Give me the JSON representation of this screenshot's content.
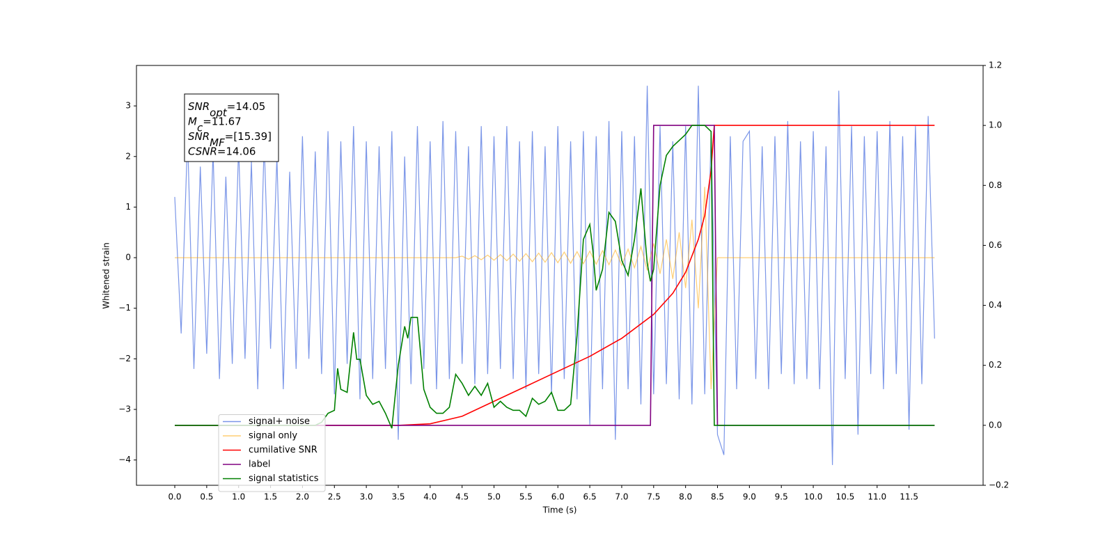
{
  "chart_data": {
    "type": "line",
    "xlabel": "Time (s)",
    "ylabel": "Whitened strain",
    "annotations": [
      {
        "main": "SNR",
        "sub": "opt",
        "text": "=14.05"
      },
      {
        "main": "M",
        "sub": "c",
        "text": "=11.67"
      },
      {
        "main": "SNR",
        "sub": "MF",
        "text": "=[15.39]"
      },
      {
        "main": "CSNR",
        "text": "=14.06"
      }
    ],
    "xlim": [
      -0.6,
      12.66
    ],
    "ylim": [
      -4.5,
      3.8
    ],
    "y2lim": [
      -0.2,
      1.2
    ],
    "xticks": [
      {
        "value": 0,
        "label": "0.0"
      },
      0.5,
      {
        "value": 1,
        "label": "1.0"
      },
      1.5,
      {
        "value": 2,
        "label": "2.0"
      },
      2.5,
      {
        "value": 3,
        "label": "3.0"
      },
      3.5,
      {
        "value": 4,
        "label": "4.0"
      },
      4.5,
      {
        "value": 5,
        "label": "5.0"
      },
      5.5,
      {
        "value": 6,
        "label": "6.0"
      },
      6.5,
      {
        "value": 7,
        "label": "7.0"
      },
      7.5,
      {
        "value": 8,
        "label": "8.0"
      },
      8.5,
      {
        "value": 9,
        "label": "9.0"
      },
      9.5,
      {
        "value": 10,
        "label": "10.0"
      },
      10.5,
      {
        "value": 11,
        "label": "11.0"
      },
      11.5
    ],
    "yticks": [
      {
        "value": -4,
        "label": "−4"
      },
      {
        "value": -3,
        "label": "−3"
      },
      {
        "value": -2,
        "label": "−2"
      },
      {
        "value": -1,
        "label": "−1"
      },
      0,
      1,
      2,
      3
    ],
    "y2ticks": [
      {
        "value": -0.2,
        "label": "−0.2"
      },
      {
        "value": 0,
        "label": "0.0"
      },
      0.2,
      0.4,
      0.6,
      0.8,
      {
        "value": 1,
        "label": "1.0"
      },
      1.2
    ],
    "legend": "lower left",
    "x": [
      0,
      0.1,
      0.2,
      0.3,
      0.4,
      0.5,
      0.6,
      0.7,
      0.8,
      0.9,
      1,
      1.1,
      1.2,
      1.3,
      1.4,
      1.5,
      1.6,
      1.7,
      1.8,
      1.9,
      2,
      2.1,
      2.2,
      2.3,
      2.4,
      2.5,
      2.6,
      2.7,
      2.8,
      2.9,
      3,
      3.1,
      3.2,
      3.3,
      3.4,
      3.5,
      3.6,
      3.7,
      3.8,
      3.9,
      4,
      4.1,
      4.2,
      4.3,
      4.4,
      4.5,
      4.6,
      4.7,
      4.8,
      4.9,
      5,
      5.1,
      5.2,
      5.3,
      5.4,
      5.5,
      5.6,
      5.7,
      5.8,
      5.9,
      6,
      6.1,
      6.2,
      6.3,
      6.4,
      6.5,
      6.6,
      6.7,
      6.8,
      6.9,
      7,
      7.1,
      7.2,
      7.3,
      7.4,
      7.5,
      7.6,
      7.7,
      7.8,
      7.9,
      8,
      8.1,
      8.2,
      8.3,
      8.4,
      8.5,
      8.6,
      8.7,
      8.8,
      8.9,
      9,
      9.1,
      9.2,
      9.3,
      9.4,
      9.5,
      9.6,
      9.7,
      9.8,
      9.9,
      10,
      10.1,
      10.2,
      10.3,
      10.4,
      10.5,
      10.6,
      10.7,
      10.8,
      10.9,
      11,
      11.1,
      11.2,
      11.3,
      11.4,
      11.5,
      11.6,
      11.7,
      11.8,
      11.9
    ],
    "series": [
      {
        "name": "signal+ noise",
        "color": "#7b96e8",
        "values": [
          1.2,
          -1.5,
          2.4,
          -2.2,
          1.8,
          -1.9,
          2.1,
          -2.4,
          1.6,
          -2.1,
          2.2,
          -2.0,
          1.9,
          -2.6,
          2.3,
          -1.8,
          2.0,
          -2.6,
          1.7,
          -2.2,
          2.4,
          -2.0,
          2.1,
          -2.3,
          2.5,
          -2.7,
          2.3,
          -2.1,
          2.6,
          -2.8,
          2.3,
          -2.4,
          2.2,
          -2.2,
          2.5,
          -3.6,
          2.0,
          -2.5,
          2.6,
          -2.2,
          2.3,
          -2.6,
          2.7,
          -2.4,
          2.5,
          -2.1,
          2.2,
          -2.5,
          2.6,
          -2.3,
          2.4,
          -2.2,
          2.6,
          -2.4,
          2.3,
          -2.6,
          2.5,
          -2.3,
          2.2,
          -2.7,
          2.6,
          -2.4,
          2.3,
          -2.8,
          2.5,
          -3.3,
          2.4,
          -2.6,
          2.7,
          -3.6,
          2.5,
          -2.6,
          2.4,
          -2.9,
          3.4,
          -2.7,
          2.6,
          -2.5,
          2.3,
          -2.8,
          2.6,
          -2.9,
          3.4,
          -2.7,
          2.5,
          -3.5,
          -3.9,
          2.4,
          -2.6,
          2.3,
          2.5,
          -2.4,
          2.2,
          -2.6,
          2.4,
          -2.3,
          2.7,
          -2.5,
          2.3,
          -2.4,
          2.5,
          -2.6,
          2.2,
          -4.1,
          3.3,
          -2.4,
          2.6,
          -3.5,
          2.4,
          -2.3,
          2.5,
          -2.6,
          2.7,
          -2.3,
          2.4,
          -3.4,
          2.6,
          -2.5,
          2.8,
          -1.6
        ]
      },
      {
        "name": "signal only",
        "color": "orange",
        "values": [
          0,
          0,
          0,
          0,
          0,
          0,
          0,
          0,
          0,
          0,
          0,
          0,
          0,
          0,
          0,
          0,
          0,
          0,
          0,
          0,
          0,
          0,
          0,
          0,
          0,
          0,
          0,
          0,
          0,
          0,
          0,
          0,
          0,
          0,
          0,
          0,
          0,
          0,
          0,
          0,
          0,
          0,
          0,
          0,
          0,
          0.03,
          -0.03,
          0.04,
          -0.04,
          0.05,
          -0.05,
          0.06,
          -0.06,
          0.07,
          -0.07,
          0.08,
          -0.08,
          0.09,
          -0.09,
          0.1,
          -0.1,
          0.11,
          -0.11,
          0.12,
          -0.12,
          0.13,
          -0.13,
          0.14,
          -0.14,
          0.15,
          -0.15,
          0.17,
          -0.2,
          0.22,
          -0.25,
          0.28,
          -0.32,
          0.36,
          -0.42,
          0.5,
          -0.6,
          0.75,
          -1.0,
          1.4,
          -2.6,
          0,
          0,
          0,
          0,
          0,
          0,
          0,
          0,
          0,
          0,
          0,
          0,
          0,
          0,
          0,
          0,
          0,
          0,
          0,
          0,
          0,
          0,
          0,
          0,
          0,
          0,
          0,
          0,
          0,
          0,
          0,
          0,
          0,
          0,
          0
        ]
      },
      {
        "name": "cumilative SNR",
        "color": "red",
        "axis": "y2",
        "x": [
          0,
          3.5,
          4.0,
          4.5,
          5.0,
          5.5,
          6.0,
          6.5,
          7.0,
          7.5,
          7.8,
          8.0,
          8.2,
          8.3,
          8.4,
          8.45,
          8.5,
          11.9
        ],
        "values": [
          0,
          0,
          0.005,
          0.03,
          0.08,
          0.13,
          0.18,
          0.23,
          0.29,
          0.37,
          0.44,
          0.51,
          0.62,
          0.7,
          0.85,
          1.0,
          1.0,
          1.0
        ]
      },
      {
        "name": "label",
        "color": "purple",
        "axis": "y2",
        "x": [
          0,
          7.45,
          7.5,
          8.45,
          8.5,
          11.9
        ],
        "values": [
          0,
          0,
          1,
          1,
          0,
          0
        ]
      },
      {
        "name": "signal statistics",
        "color": "green",
        "axis": "y2",
        "x": [
          0,
          2.2,
          2.3,
          2.4,
          2.5,
          2.55,
          2.6,
          2.7,
          2.8,
          2.85,
          2.9,
          3.0,
          3.1,
          3.2,
          3.3,
          3.4,
          3.5,
          3.6,
          3.65,
          3.7,
          3.8,
          3.9,
          4.0,
          4.1,
          4.2,
          4.3,
          4.4,
          4.5,
          4.6,
          4.7,
          4.8,
          4.9,
          5.0,
          5.1,
          5.2,
          5.3,
          5.4,
          5.5,
          5.6,
          5.7,
          5.8,
          5.9,
          6.0,
          6.1,
          6.2,
          6.3,
          6.4,
          6.5,
          6.55,
          6.6,
          6.7,
          6.8,
          6.9,
          7.0,
          7.1,
          7.2,
          7.3,
          7.4,
          7.45,
          7.5,
          7.6,
          7.7,
          7.8,
          7.9,
          8.0,
          8.1,
          8.2,
          8.3,
          8.4,
          8.45,
          8.5,
          11.9
        ],
        "values": [
          0,
          0,
          0.01,
          0.04,
          0.05,
          0.19,
          0.12,
          0.11,
          0.31,
          0.22,
          0.22,
          0.1,
          0.07,
          0.08,
          0.04,
          -0.01,
          0.2,
          0.33,
          0.29,
          0.36,
          0.36,
          0.12,
          0.06,
          0.04,
          0.04,
          0.06,
          0.17,
          0.14,
          0.1,
          0.13,
          0.1,
          0.14,
          0.06,
          0.08,
          0.06,
          0.05,
          0.05,
          0.03,
          0.09,
          0.07,
          0.08,
          0.11,
          0.05,
          0.05,
          0.07,
          0.3,
          0.62,
          0.67,
          0.58,
          0.45,
          0.52,
          0.71,
          0.68,
          0.55,
          0.5,
          0.62,
          0.79,
          0.54,
          0.48,
          0.52,
          0.8,
          0.9,
          0.93,
          0.95,
          0.97,
          1.0,
          1.0,
          1.0,
          0.98,
          0.0,
          0.0,
          0.0
        ]
      }
    ]
  }
}
